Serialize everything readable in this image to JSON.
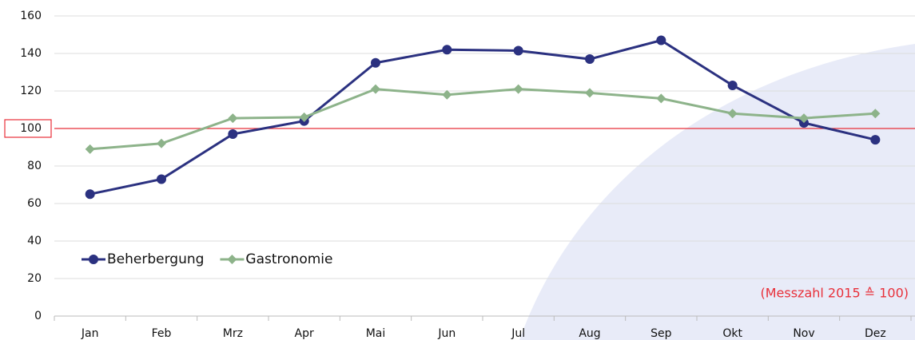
{
  "chart_data": {
    "type": "line",
    "categories": [
      "Jan",
      "Feb",
      "Mrz",
      "Apr",
      "Mai",
      "Jun",
      "Jul",
      "Aug",
      "Sep",
      "Okt",
      "Nov",
      "Dez"
    ],
    "series": [
      {
        "name": "Beherbergung",
        "color": "#2b3180",
        "marker": "circle",
        "values": [
          65,
          73,
          97,
          104,
          135,
          142,
          141.5,
          137,
          147,
          123,
          103,
          94
        ]
      },
      {
        "name": "Gastronomie",
        "color": "#8db38a",
        "marker": "diamond",
        "values": [
          89,
          92,
          105.5,
          106,
          121,
          118,
          121,
          119,
          116,
          108,
          105.5,
          108
        ]
      }
    ],
    "ylim": [
      0,
      160
    ],
    "yticks": [
      0,
      20,
      40,
      60,
      80,
      100,
      120,
      140,
      160
    ],
    "grid": true,
    "reference_line": {
      "value": 100,
      "color": "#e8303a"
    },
    "annotation": "(Messzahl 2015 ≙ 100)",
    "legend": "lower-left"
  }
}
